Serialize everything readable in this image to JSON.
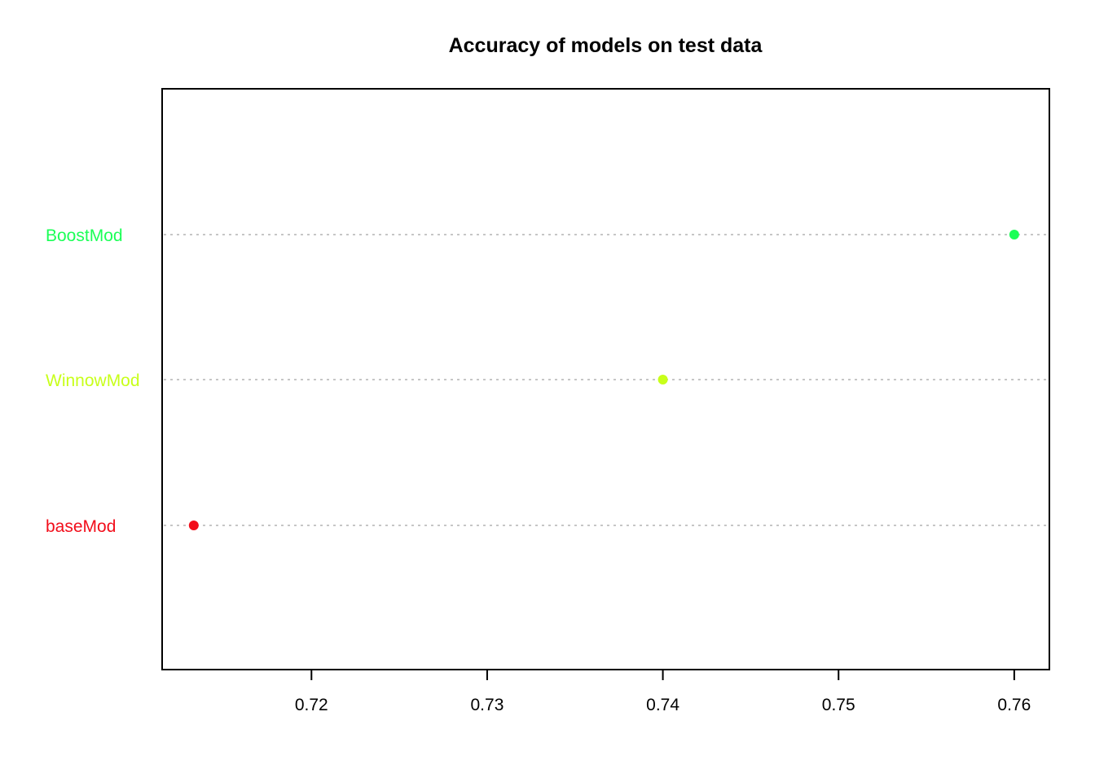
{
  "chart_data": {
    "type": "scatter",
    "title": "Accuracy of models on test data",
    "xlabel": "",
    "ylabel": "",
    "xlim": [
      0.7115,
      0.762
    ],
    "x_ticks": [
      "0.72",
      "0.73",
      "0.74",
      "0.75",
      "0.76"
    ],
    "x_tick_values": [
      0.72,
      0.73,
      0.74,
      0.75,
      0.76
    ],
    "grid": "horizontal dotted lines at each category",
    "categories": [
      "baseMod",
      "WinnowMod",
      "BoostMod"
    ],
    "values": [
      0.7133,
      0.74,
      0.76
    ],
    "colors": [
      "#f20e1b",
      "#c8ff1a",
      "#1bff56"
    ],
    "grid_color": "#b3b3b3"
  }
}
